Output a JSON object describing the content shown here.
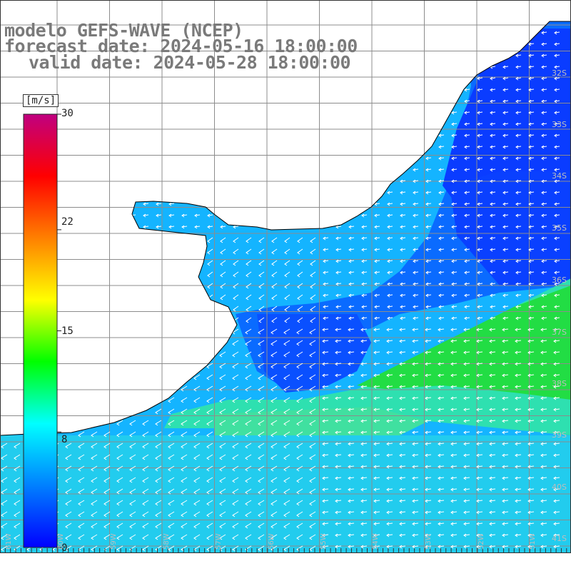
{
  "title": {
    "line1": "modelo GEFS-WAVE (NCEP)",
    "line2": "forecast date: 2024-05-16 18:00:00",
    "line3": "valid date: 2024-05-28 18:00:00"
  },
  "colorbar": {
    "unit": "[m/s]",
    "ticks": [
      "30",
      "22",
      "15",
      "8",
      "0"
    ],
    "tick_values": [
      30,
      22,
      15,
      8,
      0
    ],
    "range": [
      0,
      30
    ],
    "colors": [
      "#0000ff",
      "#0080ff",
      "#00ffff",
      "#00ff00",
      "#ffff00",
      "#ff8000",
      "#ff0000",
      "#c00080"
    ]
  },
  "map": {
    "lat_labels": [
      "32S",
      "33S",
      "34S",
      "35S",
      "36S",
      "37S",
      "38S",
      "39S",
      "40S",
      "41S"
    ],
    "lon_labels": [
      "61W",
      "60W",
      "59W",
      "58W",
      "57W",
      "56W",
      "55W",
      "54W",
      "53W",
      "52W",
      "51W"
    ],
    "ocean_base_color": "#14b4ff",
    "land_color": "#ffffff",
    "grid_color": "#8c8c8c",
    "vector_color": "#ffffff",
    "coast_color": "#000000"
  }
}
